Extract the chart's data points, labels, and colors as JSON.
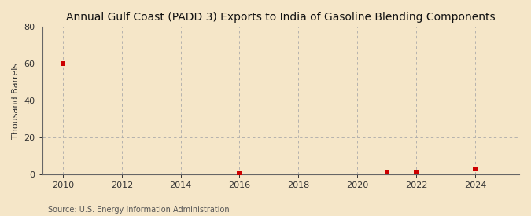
{
  "title": "Annual Gulf Coast (PADD 3) Exports to India of Gasoline Blending Components",
  "ylabel": "Thousand Barrels",
  "source": "Source: U.S. Energy Information Administration",
  "background_color": "#f5e6c8",
  "plot_background_color": "#fdf5e0",
  "data_points": [
    {
      "year": 2010,
      "value": 60
    },
    {
      "year": 2016,
      "value": 0.2
    },
    {
      "year": 2021,
      "value": 1.0
    },
    {
      "year": 2022,
      "value": 1.2
    },
    {
      "year": 2024,
      "value": 3.0
    }
  ],
  "marker_color": "#cc0000",
  "marker_size": 18,
  "marker_style": "s",
  "xlim": [
    2009.3,
    2025.5
  ],
  "ylim": [
    0,
    80
  ],
  "yticks": [
    0,
    20,
    40,
    60,
    80
  ],
  "xticks": [
    2010,
    2012,
    2014,
    2016,
    2018,
    2020,
    2022,
    2024
  ],
  "grid_color": "#aaaaaa",
  "grid_linestyle": "--",
  "grid_linewidth": 0.6,
  "title_fontsize": 10,
  "axis_label_fontsize": 8,
  "tick_fontsize": 8,
  "source_fontsize": 7
}
